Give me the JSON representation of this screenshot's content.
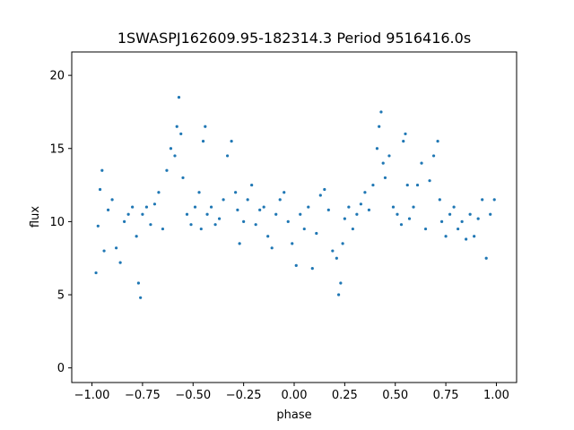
{
  "chart_data": {
    "type": "scatter",
    "title": "1SWASPJ162609.95-182314.3 Period 9516416.0s",
    "xlabel": "phase",
    "ylabel": "flux",
    "xlim": [
      -1.1,
      1.1
    ],
    "ylim": [
      -1.0,
      21.6
    ],
    "xticks": [
      -1.0,
      -0.75,
      -0.5,
      -0.25,
      0.0,
      0.25,
      0.5,
      0.75,
      1.0
    ],
    "xtick_labels": [
      "−1.00",
      "−0.75",
      "−0.50",
      "−0.25",
      "0.00",
      "0.25",
      "0.50",
      "0.75",
      "1.00"
    ],
    "yticks": [
      0,
      5,
      10,
      15,
      20
    ],
    "ytick_labels": [
      "0",
      "5",
      "10",
      "15",
      "20"
    ],
    "grid": false,
    "marker_color": "#1f77b4",
    "series": [
      {
        "x": [
          -0.98,
          -0.97,
          -0.96,
          -0.95,
          -0.94,
          -0.92,
          -0.9,
          -0.88,
          -0.86,
          -0.84,
          -0.82,
          -0.8,
          -0.78,
          -0.77,
          -0.76,
          -0.75,
          -0.73,
          -0.71,
          -0.69,
          -0.67,
          -0.65,
          -0.63,
          -0.61,
          -0.59,
          -0.58,
          -0.57,
          -0.56,
          -0.55,
          -0.53,
          -0.51,
          -0.49,
          -0.47,
          -0.46,
          -0.45,
          -0.44,
          -0.43,
          -0.41,
          -0.39,
          -0.37,
          -0.35,
          -0.33,
          -0.31,
          -0.29,
          -0.28,
          -0.27,
          -0.25,
          -0.23,
          -0.21,
          -0.19,
          -0.17,
          -0.15,
          -0.13,
          -0.11,
          -0.09,
          -0.07,
          -0.05,
          -0.03,
          -0.01,
          0.01,
          0.03,
          0.05,
          0.07,
          0.09,
          0.11,
          0.13,
          0.15,
          0.17,
          0.19,
          0.21,
          0.22,
          0.23,
          0.24,
          0.25,
          0.27,
          0.29,
          0.31,
          0.33,
          0.35,
          0.37,
          0.39,
          0.41,
          0.42,
          0.43,
          0.44,
          0.45,
          0.47,
          0.49,
          0.51,
          0.53,
          0.54,
          0.55,
          0.56,
          0.57,
          0.59,
          0.61,
          0.63,
          0.65,
          0.67,
          0.69,
          0.71,
          0.72,
          0.73,
          0.75,
          0.77,
          0.79,
          0.81,
          0.83,
          0.85,
          0.87,
          0.89,
          0.91,
          0.93,
          0.95,
          0.97,
          0.99
        ],
        "y": [
          6.5,
          9.7,
          12.2,
          13.5,
          8.0,
          10.8,
          11.5,
          8.2,
          7.2,
          10.0,
          10.5,
          11.0,
          9.0,
          5.8,
          4.8,
          10.5,
          11.0,
          9.8,
          11.2,
          12.0,
          9.5,
          13.5,
          15.0,
          14.5,
          16.5,
          18.5,
          16.0,
          13.0,
          10.5,
          9.8,
          11.0,
          12.0,
          9.5,
          15.5,
          16.5,
          10.5,
          11.0,
          9.8,
          10.2,
          11.5,
          14.5,
          15.5,
          12.0,
          10.8,
          8.5,
          10.0,
          11.5,
          12.5,
          9.8,
          10.8,
          11.0,
          9.0,
          8.2,
          10.5,
          11.5,
          12.0,
          10.0,
          8.5,
          7.0,
          10.5,
          9.5,
          11.0,
          6.8,
          9.2,
          11.8,
          12.2,
          10.8,
          8.0,
          7.5,
          5.0,
          5.8,
          8.5,
          10.2,
          11.0,
          9.5,
          10.5,
          11.2,
          12.0,
          10.8,
          12.5,
          15.0,
          16.5,
          17.5,
          14.0,
          13.0,
          14.5,
          11.0,
          10.5,
          9.8,
          15.5,
          16.0,
          12.5,
          10.2,
          11.0,
          12.5,
          14.0,
          9.5,
          12.8,
          14.5,
          15.5,
          11.5,
          10.0,
          9.0,
          10.5,
          11.0,
          9.5,
          10.0,
          8.8,
          10.5,
          9.0,
          10.2,
          11.5,
          7.5,
          10.5,
          11.5
        ]
      }
    ]
  }
}
